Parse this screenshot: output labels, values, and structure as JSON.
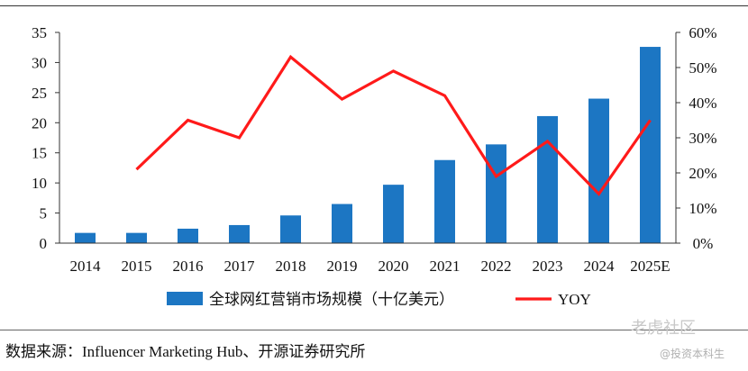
{
  "chart_data": {
    "type": "bar",
    "categories": [
      "2014",
      "2015",
      "2016",
      "2017",
      "2018",
      "2019",
      "2020",
      "2021",
      "2022",
      "2023",
      "2024",
      "2025E"
    ],
    "series": [
      {
        "name": "全球网红营销市场规模（十亿美元）",
        "type": "bar",
        "axis": "left",
        "color": "#1c76c3",
        "values": [
          1.7,
          1.7,
          2.4,
          3.0,
          4.6,
          6.5,
          9.7,
          13.8,
          16.4,
          21.1,
          24.0,
          32.6
        ]
      },
      {
        "name": "YOY",
        "type": "line",
        "axis": "right",
        "color": "#ff1a1a",
        "values": [
          null,
          0.21,
          0.35,
          0.3,
          0.53,
          0.41,
          0.49,
          0.42,
          0.19,
          0.29,
          0.14,
          0.35
        ]
      }
    ],
    "yLeft": {
      "ticks": [
        "0",
        "5",
        "10",
        "15",
        "20",
        "25",
        "30",
        "35"
      ],
      "range": [
        0,
        35
      ]
    },
    "yRight": {
      "ticks": [
        "0%",
        "10%",
        "20%",
        "30%",
        "40%",
        "50%",
        "60%"
      ],
      "range": [
        0,
        0.6
      ]
    },
    "grid": false,
    "legend_position": "bottom-center"
  },
  "source": "数据来源：Influencer Marketing Hub、开源证券研究所",
  "watermark": {
    "main": "老虎社区",
    "sub": "@投资本科生"
  }
}
